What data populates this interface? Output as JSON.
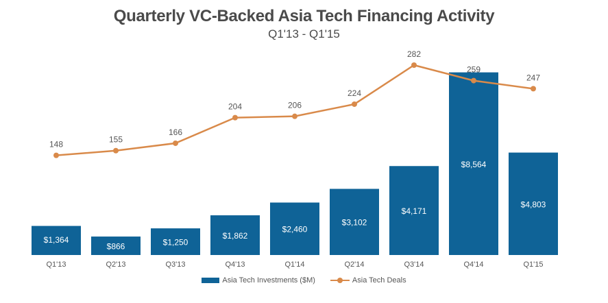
{
  "chart_data": {
    "type": "bar",
    "title": "Quarterly VC-Backed Asia Tech Financing Activity",
    "subtitle": "Q1'13 - Q1'15",
    "categories": [
      "Q1'13",
      "Q2'13",
      "Q3'13",
      "Q4'13",
      "Q1'14",
      "Q2'14",
      "Q3'14",
      "Q4'14",
      "Q1'15"
    ],
    "series": [
      {
        "name": "Asia Tech Investments ($M)",
        "type": "bar",
        "values": [
          1364,
          866,
          1250,
          1862,
          2460,
          3102,
          4171,
          8564,
          4803
        ],
        "labels": [
          "$1,364",
          "$866",
          "$1,250",
          "$1,862",
          "$2,460",
          "$3,102",
          "$4,171",
          "$8,564",
          "$4,803"
        ],
        "ylim": [
          0,
          9000
        ]
      },
      {
        "name": "Asia Tech Deals",
        "type": "line",
        "values": [
          148,
          155,
          166,
          204,
          206,
          224,
          282,
          259,
          247
        ],
        "labels": [
          "148",
          "155",
          "166",
          "204",
          "206",
          "224",
          "282",
          "259",
          "247"
        ],
        "ylim": [
          0,
          300
        ]
      }
    ],
    "colors": {
      "bar": "#0f6397",
      "line": "#d98a4a",
      "text": "#555555",
      "title": "#4a4a4a"
    },
    "grid": false,
    "legend_position": "bottom"
  }
}
